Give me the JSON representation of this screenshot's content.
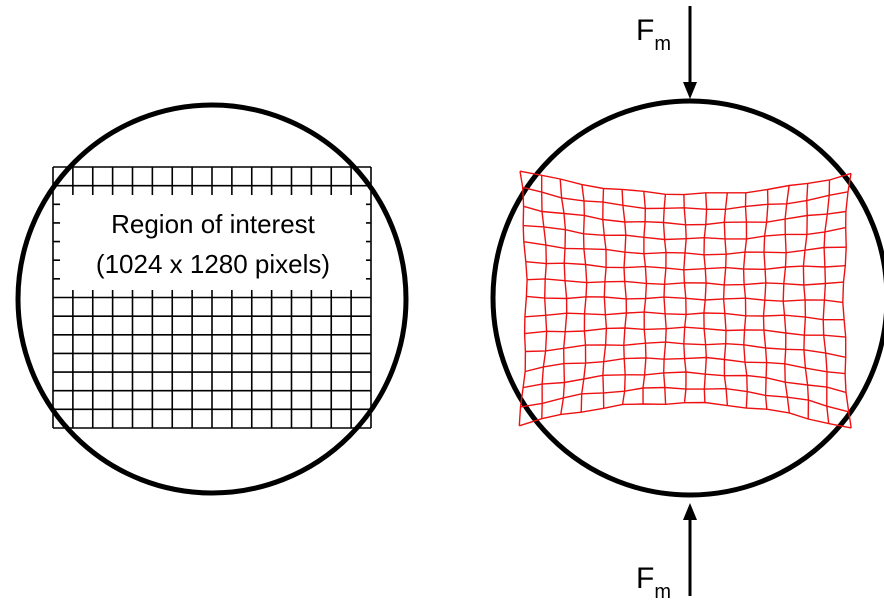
{
  "left_panel": {
    "roi_label_line1": "Region of interest",
    "roi_label_line2": "(1024 x 1280 pixels)"
  },
  "right_panel": {
    "force_top": {
      "base": "F",
      "sub": "m"
    },
    "force_bottom": {
      "base": "F",
      "sub": "m"
    }
  },
  "colors": {
    "outline": "#000000",
    "undeformed_grid": "#000000",
    "deformed_grid": "#ee1111"
  }
}
